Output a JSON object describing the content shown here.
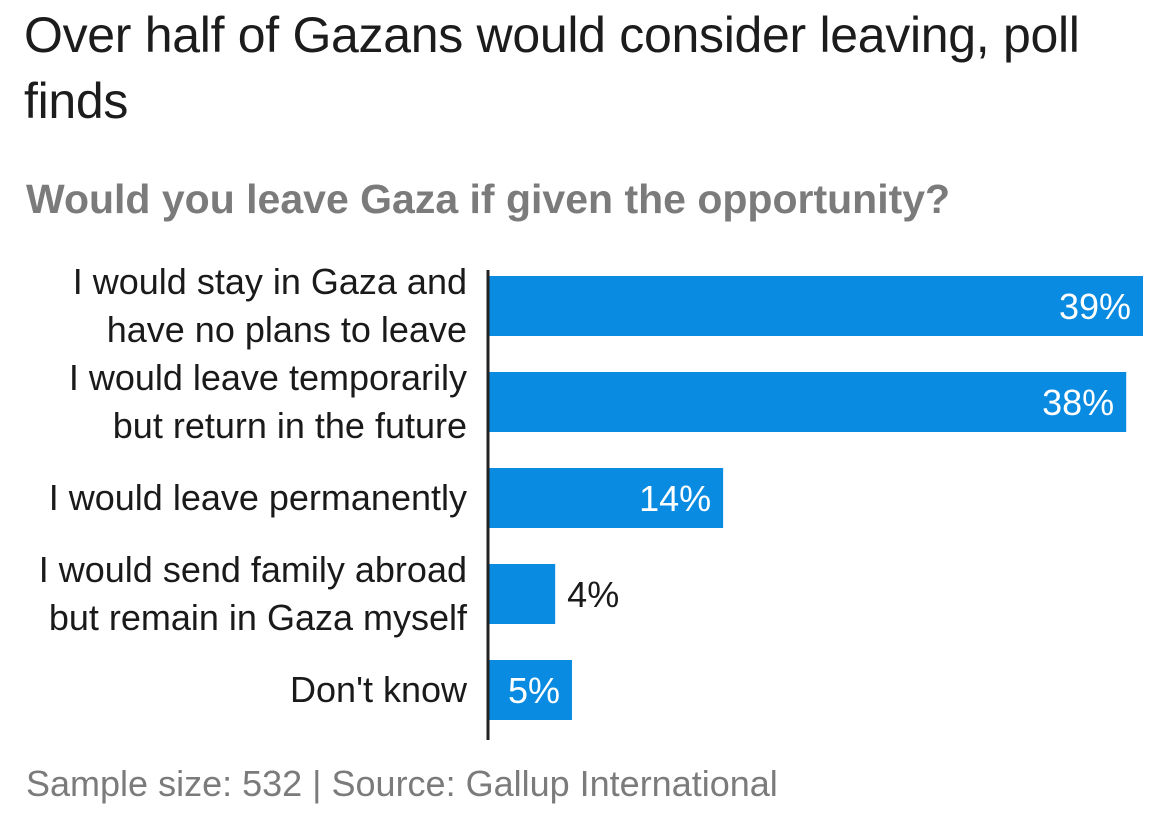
{
  "title": "Over half of Gazans would consider leaving, poll finds",
  "subtitle": "Would you leave Gaza if given the opportunity?",
  "source": "Sample size: 532 | Source: Gallup International",
  "colors": {
    "bar": "#0a8be2",
    "axis": "#222222",
    "label_inside": "#ffffff",
    "label_outside": "#1a1a1a"
  },
  "chart_data": {
    "type": "bar",
    "orientation": "horizontal",
    "categories": [
      [
        "I would stay in Gaza and",
        "have no plans to leave"
      ],
      [
        "I would leave temporarily",
        "but return in the future"
      ],
      [
        "I would leave permanently"
      ],
      [
        "I would send family abroad",
        "but remain in Gaza myself"
      ],
      [
        "Don't know"
      ]
    ],
    "values": [
      39,
      38,
      14,
      4,
      5
    ],
    "value_labels": [
      "39%",
      "38%",
      "14%",
      "4%",
      "5%"
    ],
    "xlim": [
      0,
      39
    ],
    "grid": false,
    "legend": "none"
  }
}
